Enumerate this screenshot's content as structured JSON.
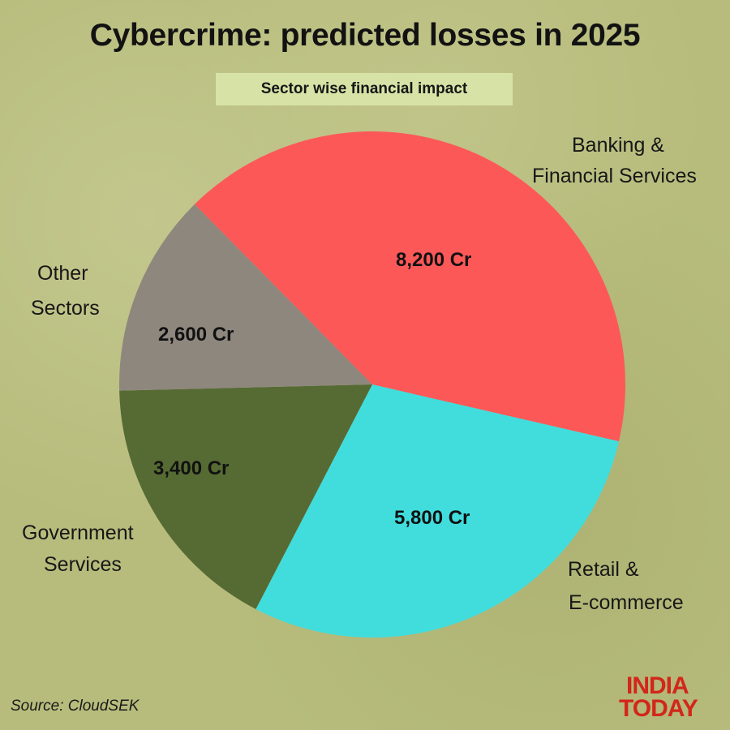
{
  "header": {
    "title": "Cybercrime: predicted losses in 2025",
    "subtitle": "Sector wise financial impact"
  },
  "slices": [
    {
      "label_line1": "Banking &",
      "label_line2": "Financial Services",
      "value_label": "8,200 Cr",
      "color": "#fd5858"
    },
    {
      "label_line1": "Retail &",
      "label_line2": "E-commerce",
      "value_label": "5,800 Cr",
      "color": "#41dddd"
    },
    {
      "label_line1": "Government",
      "label_line2": "Services",
      "value_label": "3,400 Cr",
      "color": "#566b33"
    },
    {
      "label_line1": "Other",
      "label_line2": "Sectors",
      "value_label": "2,600 Cr",
      "color": "#8e877e"
    }
  ],
  "footer": {
    "source": "Source: CloudSEK",
    "logo_line1": "INDIA",
    "logo_line2": "TODAY",
    "logo_color": "#d2271a"
  },
  "chart_data": {
    "type": "pie",
    "title": "Cybercrime: predicted losses in 2025",
    "subtitle": "Sector wise financial impact",
    "categories": [
      "Banking & Financial Services",
      "Retail & E-commerce",
      "Government Services",
      "Other Sectors"
    ],
    "values": [
      8200,
      5800,
      3400,
      2600
    ],
    "unit": "Cr",
    "value_labels": [
      "8,200 Cr",
      "5,800 Cr",
      "3,400 Cr",
      "2,600 Cr"
    ],
    "colors": [
      "#fd5858",
      "#41dddd",
      "#566b33",
      "#8e877e"
    ],
    "legend": "none (direct labels)",
    "source": "CloudSEK"
  }
}
